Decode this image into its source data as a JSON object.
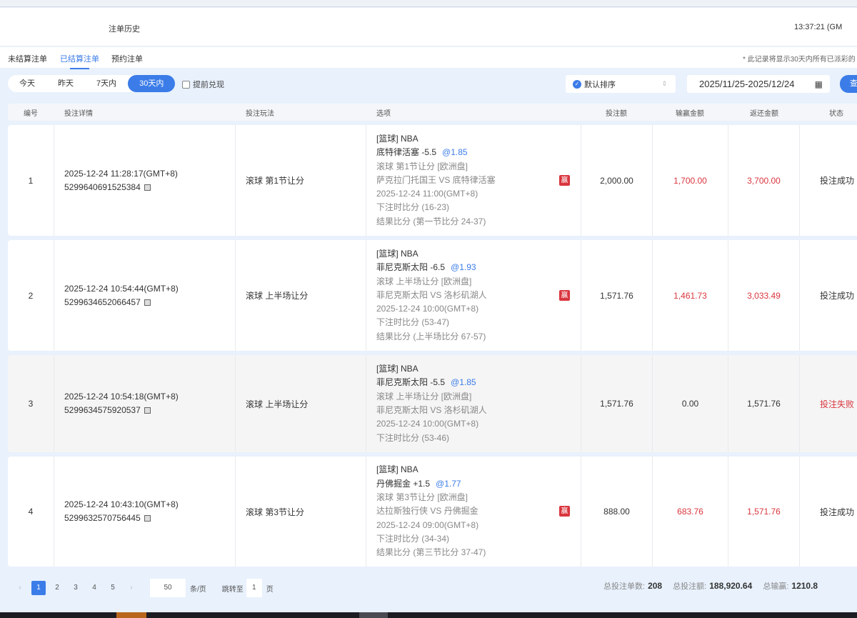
{
  "header": {
    "title": "注单历史",
    "clock": "13:37:21 (GM"
  },
  "tabs": [
    {
      "label": "未结算注单"
    },
    {
      "label": "已结算注单",
      "active": true
    },
    {
      "label": "预约注单"
    }
  ],
  "note": "* 此记录将显示30天内所有已派彩的",
  "filters": {
    "ranges": [
      "今天",
      "昨天",
      "7天内",
      "30天内"
    ],
    "active_range": "30天内",
    "early_cashout": "提前兑现",
    "early_cashout_checked": false,
    "sort": "默认排序",
    "date_range": "2025/11/25-2025/12/24",
    "query": "查"
  },
  "table": {
    "headers": [
      "编号",
      "投注详情",
      "投注玩法",
      "选项",
      "投注额",
      "输赢金额",
      "返还金额",
      "状态"
    ],
    "rows": [
      {
        "no": "1",
        "time": "2025-12-24 11:28:17(GMT+8)",
        "id": "5299640691525384",
        "play": "滚球   第1节让分",
        "league": "[篮球] NBA",
        "pick": "底特律活塞 -5.5",
        "odds": "@1.85",
        "market": "滚球 第1节让分 [欧洲盘]",
        "match": "萨克拉门托国王 VS 底特律活塞",
        "kickoff": "2025-12-24 11:00(GMT+8)",
        "bet_score": "下注时比分 (16-23)",
        "result": "结果比分 (第一节比分 24-37)",
        "badge": "赢",
        "stake": "2,000.00",
        "winloss": "1,700.00",
        "return": "3,700.00",
        "status": "投注成功"
      },
      {
        "no": "2",
        "time": "2025-12-24 10:54:44(GMT+8)",
        "id": "5299634652066457",
        "play": "滚球   上半场让分",
        "league": "[篮球] NBA",
        "pick": "菲尼克斯太阳 -6.5",
        "odds": "@1.93",
        "market": "滚球 上半场让分 [欧洲盘]",
        "match": "菲尼克斯太阳 VS 洛杉矶湖人",
        "kickoff": "2025-12-24 10:00(GMT+8)",
        "bet_score": "下注时比分 (53-47)",
        "result": "结果比分 (上半场比分 67-57)",
        "badge": "赢",
        "stake": "1,571.76",
        "winloss": "1,461.73",
        "return": "3,033.49",
        "status": "投注成功"
      },
      {
        "no": "3",
        "time": "2025-12-24 10:54:18(GMT+8)",
        "id": "5299634575920537",
        "play": "滚球   上半场让分",
        "league": "[篮球] NBA",
        "pick": "菲尼克斯太阳 -5.5",
        "odds": "@1.85",
        "market": "滚球 上半场让分 [欧洲盘]",
        "match": "菲尼克斯太阳 VS 洛杉矶湖人",
        "kickoff": "2025-12-24 10:00(GMT+8)",
        "bet_score": "下注时比分 (53-46)",
        "stake": "1,571.76",
        "winloss": "0.00",
        "return": "1,571.76",
        "status": "投注失败"
      },
      {
        "no": "4",
        "time": "2025-12-24 10:43:10(GMT+8)",
        "id": "5299632570756445",
        "play": "滚球   第3节让分",
        "league": "[篮球] NBA",
        "pick": "丹佛掘金 +1.5",
        "odds": "@1.77",
        "market": "滚球 第3节让分 [欧洲盘]",
        "match": "达拉斯独行侠 VS 丹佛掘金",
        "kickoff": "2025-12-24 09:00(GMT+8)",
        "bet_score": "下注时比分 (34-34)",
        "result": "结果比分 (第三节比分 37-47)",
        "badge": "赢",
        "stake": "888.00",
        "winloss": "683.76",
        "return": "1,571.76",
        "status": "投注成功"
      }
    ]
  },
  "pagination": {
    "pages": [
      "1",
      "2",
      "3",
      "4",
      "5"
    ],
    "current": "1",
    "page_size": "50",
    "page_size_unit": "条/页",
    "jump_label": "跳转至",
    "jump_value": "1",
    "jump_unit": "页"
  },
  "summary": {
    "count_label": "总投注单数:",
    "count": "208",
    "stake_label": "总投注额:",
    "stake": "188,920.64",
    "winloss_label": "总输赢:",
    "winloss": "1210.8"
  },
  "colors": {
    "accent": "#3b7ce8",
    "win": "#d9363e"
  }
}
